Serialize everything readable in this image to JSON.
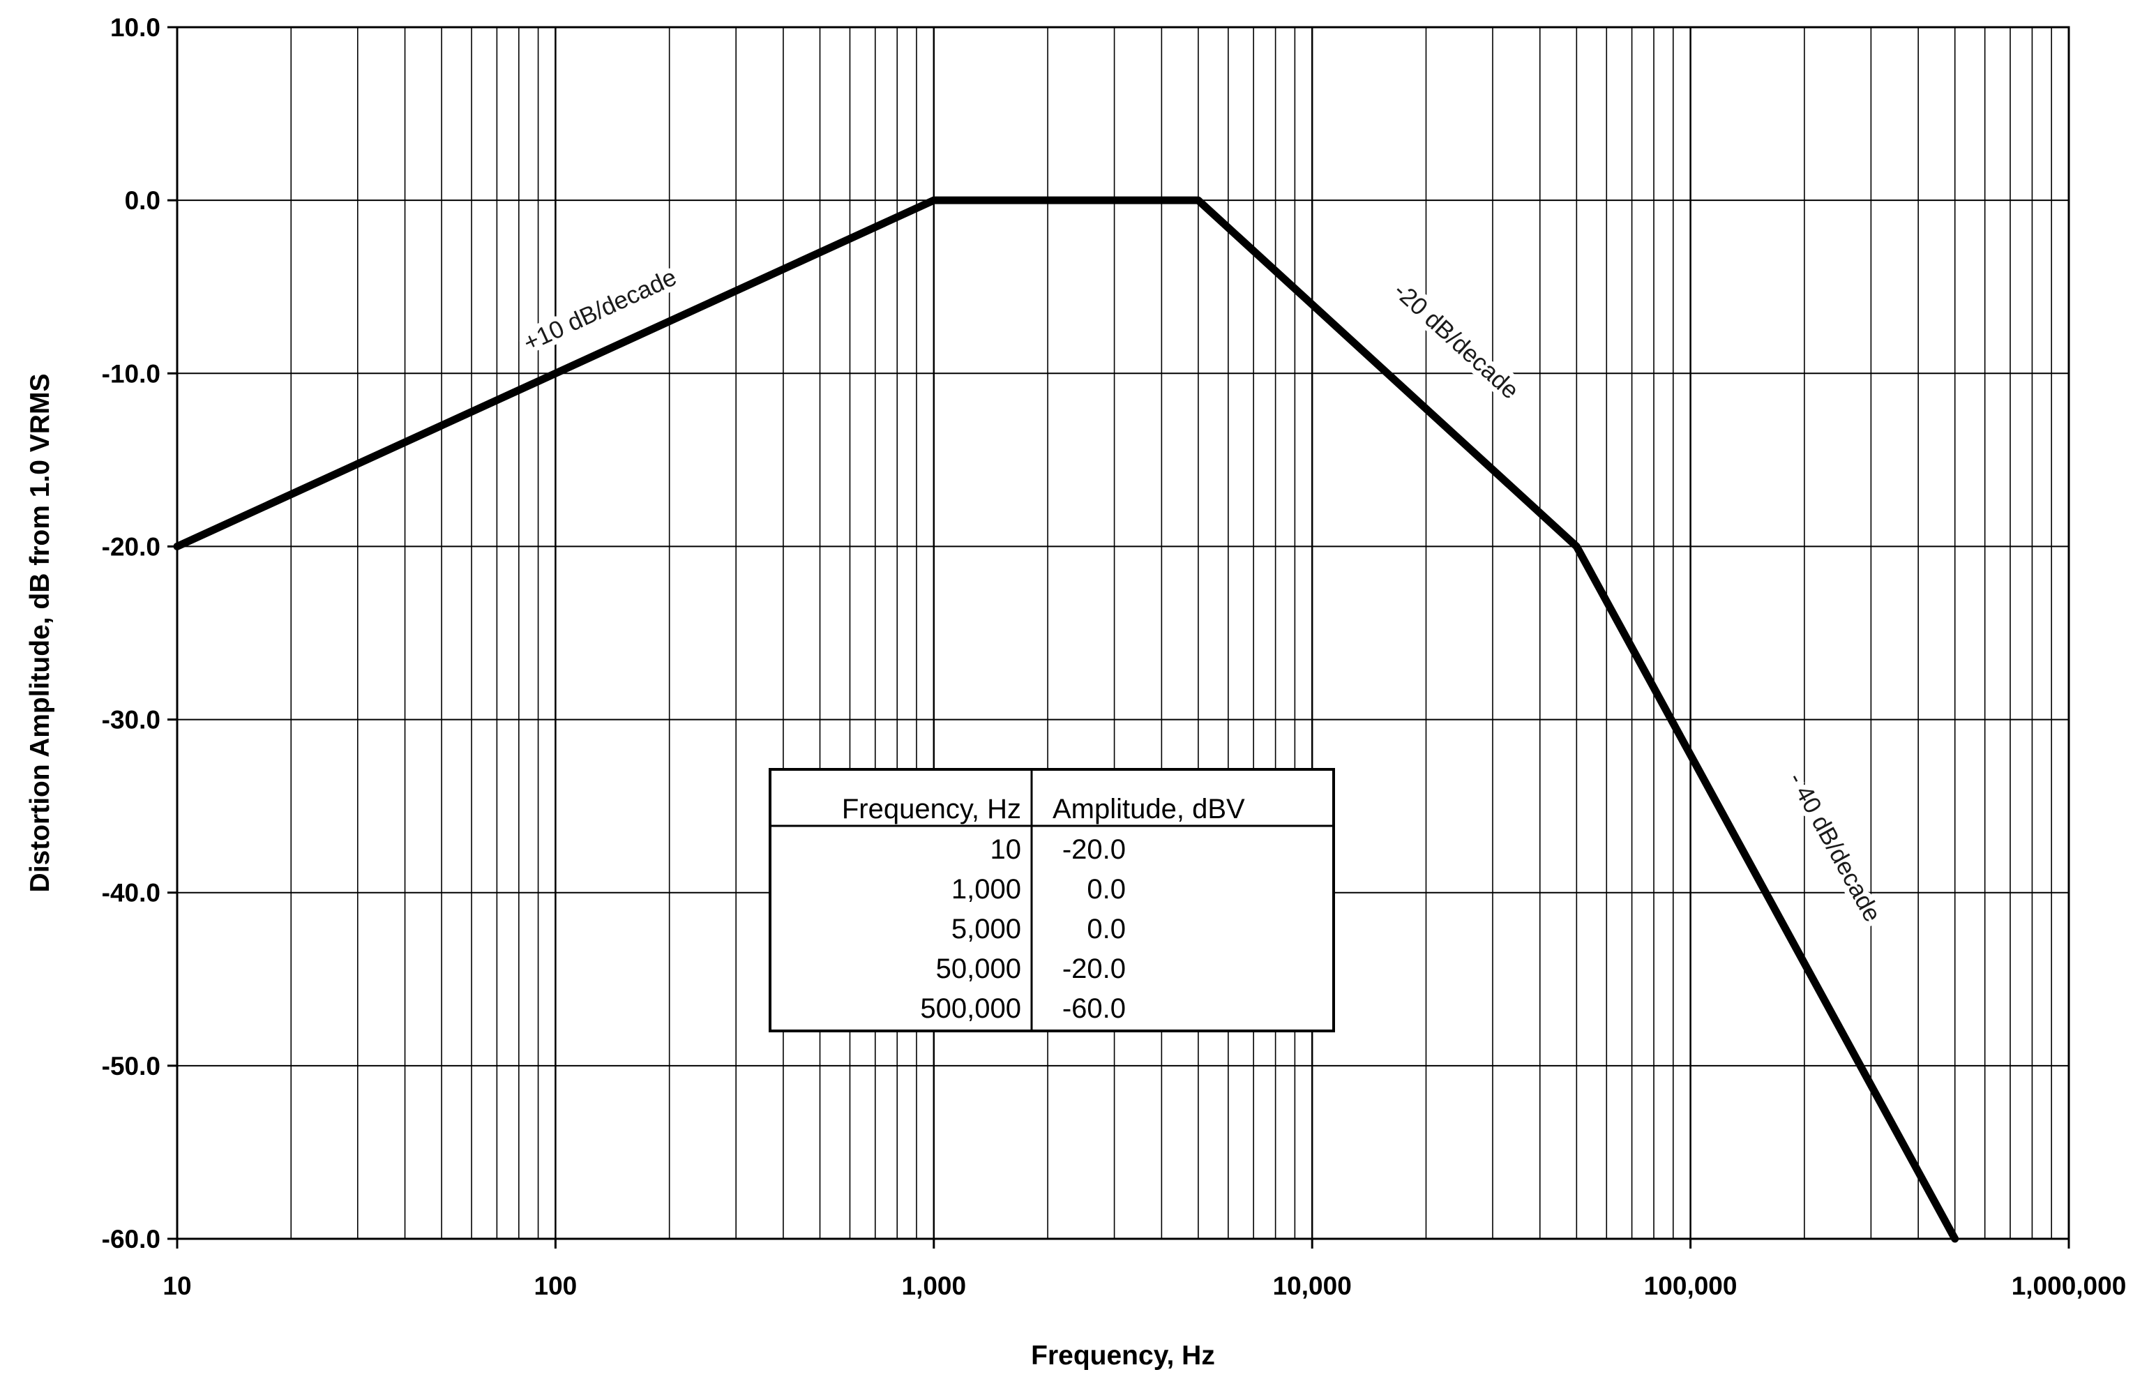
{
  "chart_data": {
    "type": "line",
    "xscale": "log",
    "xlim": [
      10,
      1000000
    ],
    "ylim": [
      -60,
      10
    ],
    "grid": true,
    "xlabel": "Frequency, Hz",
    "ylabel": "Distortion Amplitude, dB from 1.0 VRMS",
    "x_ticks": [
      {
        "value": 10,
        "label": "10"
      },
      {
        "value": 100,
        "label": "100"
      },
      {
        "value": 1000,
        "label": "1,000"
      },
      {
        "value": 10000,
        "label": "10,000"
      },
      {
        "value": 100000,
        "label": "100,000"
      },
      {
        "value": 1000000,
        "label": "1,000,000"
      }
    ],
    "y_ticks": [
      {
        "value": 10,
        "label": "10.0"
      },
      {
        "value": 0,
        "label": "0.0"
      },
      {
        "value": -10,
        "label": "-10.0"
      },
      {
        "value": -20,
        "label": "-20.0"
      },
      {
        "value": -30,
        "label": "-30.0"
      },
      {
        "value": -40,
        "label": "-40.0"
      },
      {
        "value": -50,
        "label": "-50.0"
      },
      {
        "value": -60,
        "label": "-60.0"
      }
    ],
    "series": [
      {
        "x": [
          10,
          1000,
          5000,
          50000,
          500000
        ],
        "y": [
          -20,
          0,
          0,
          -20,
          -60
        ]
      }
    ],
    "annotations": [
      {
        "text": "+10 dB/decade"
      },
      {
        "text": "-20 dB/decade"
      },
      {
        "text": "- 40 dB/decade"
      }
    ],
    "table": {
      "headers": [
        "Frequency, Hz",
        "Amplitude, dBV"
      ],
      "rows": [
        [
          "10",
          "-20.0"
        ],
        [
          "1,000",
          "0.0"
        ],
        [
          "5,000",
          "0.0"
        ],
        [
          "50,000",
          "-20.0"
        ],
        [
          "500,000",
          "-60.0"
        ]
      ]
    }
  }
}
